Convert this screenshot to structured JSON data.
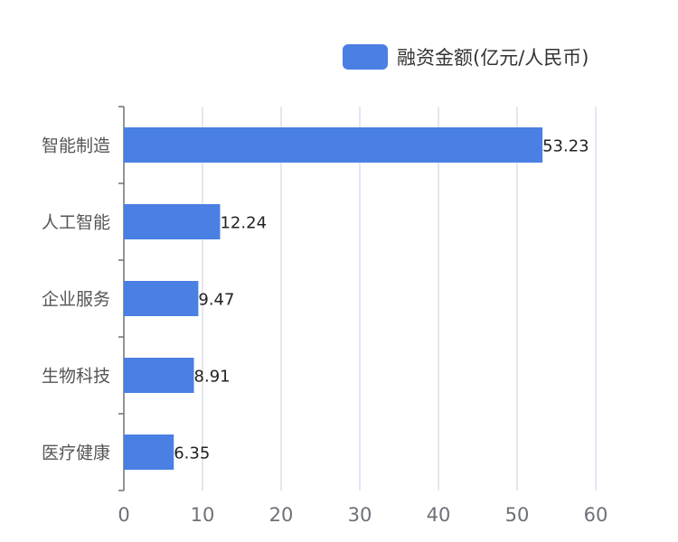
{
  "chart_data": {
    "type": "bar",
    "orientation": "horizontal",
    "categories": [
      "智能制造",
      "人工智能",
      "企业服务",
      "生物科技",
      "医疗健康"
    ],
    "series": [
      {
        "name": "融资金额(亿元/人民币)",
        "values": [
          53.23,
          12.24,
          9.47,
          8.91,
          6.35
        ],
        "color": "#4a7fe3"
      }
    ],
    "xaxis": {
      "ticks": [
        0,
        10,
        20,
        30,
        40,
        50,
        60
      ],
      "range": [
        0,
        60
      ]
    },
    "grid": true,
    "legend_position": "top-right",
    "value_labels": [
      "53.23",
      "12.24",
      "9.47",
      "8.91",
      "6.35"
    ]
  },
  "legend": {
    "label": "融资金额(亿元/人民币)"
  }
}
